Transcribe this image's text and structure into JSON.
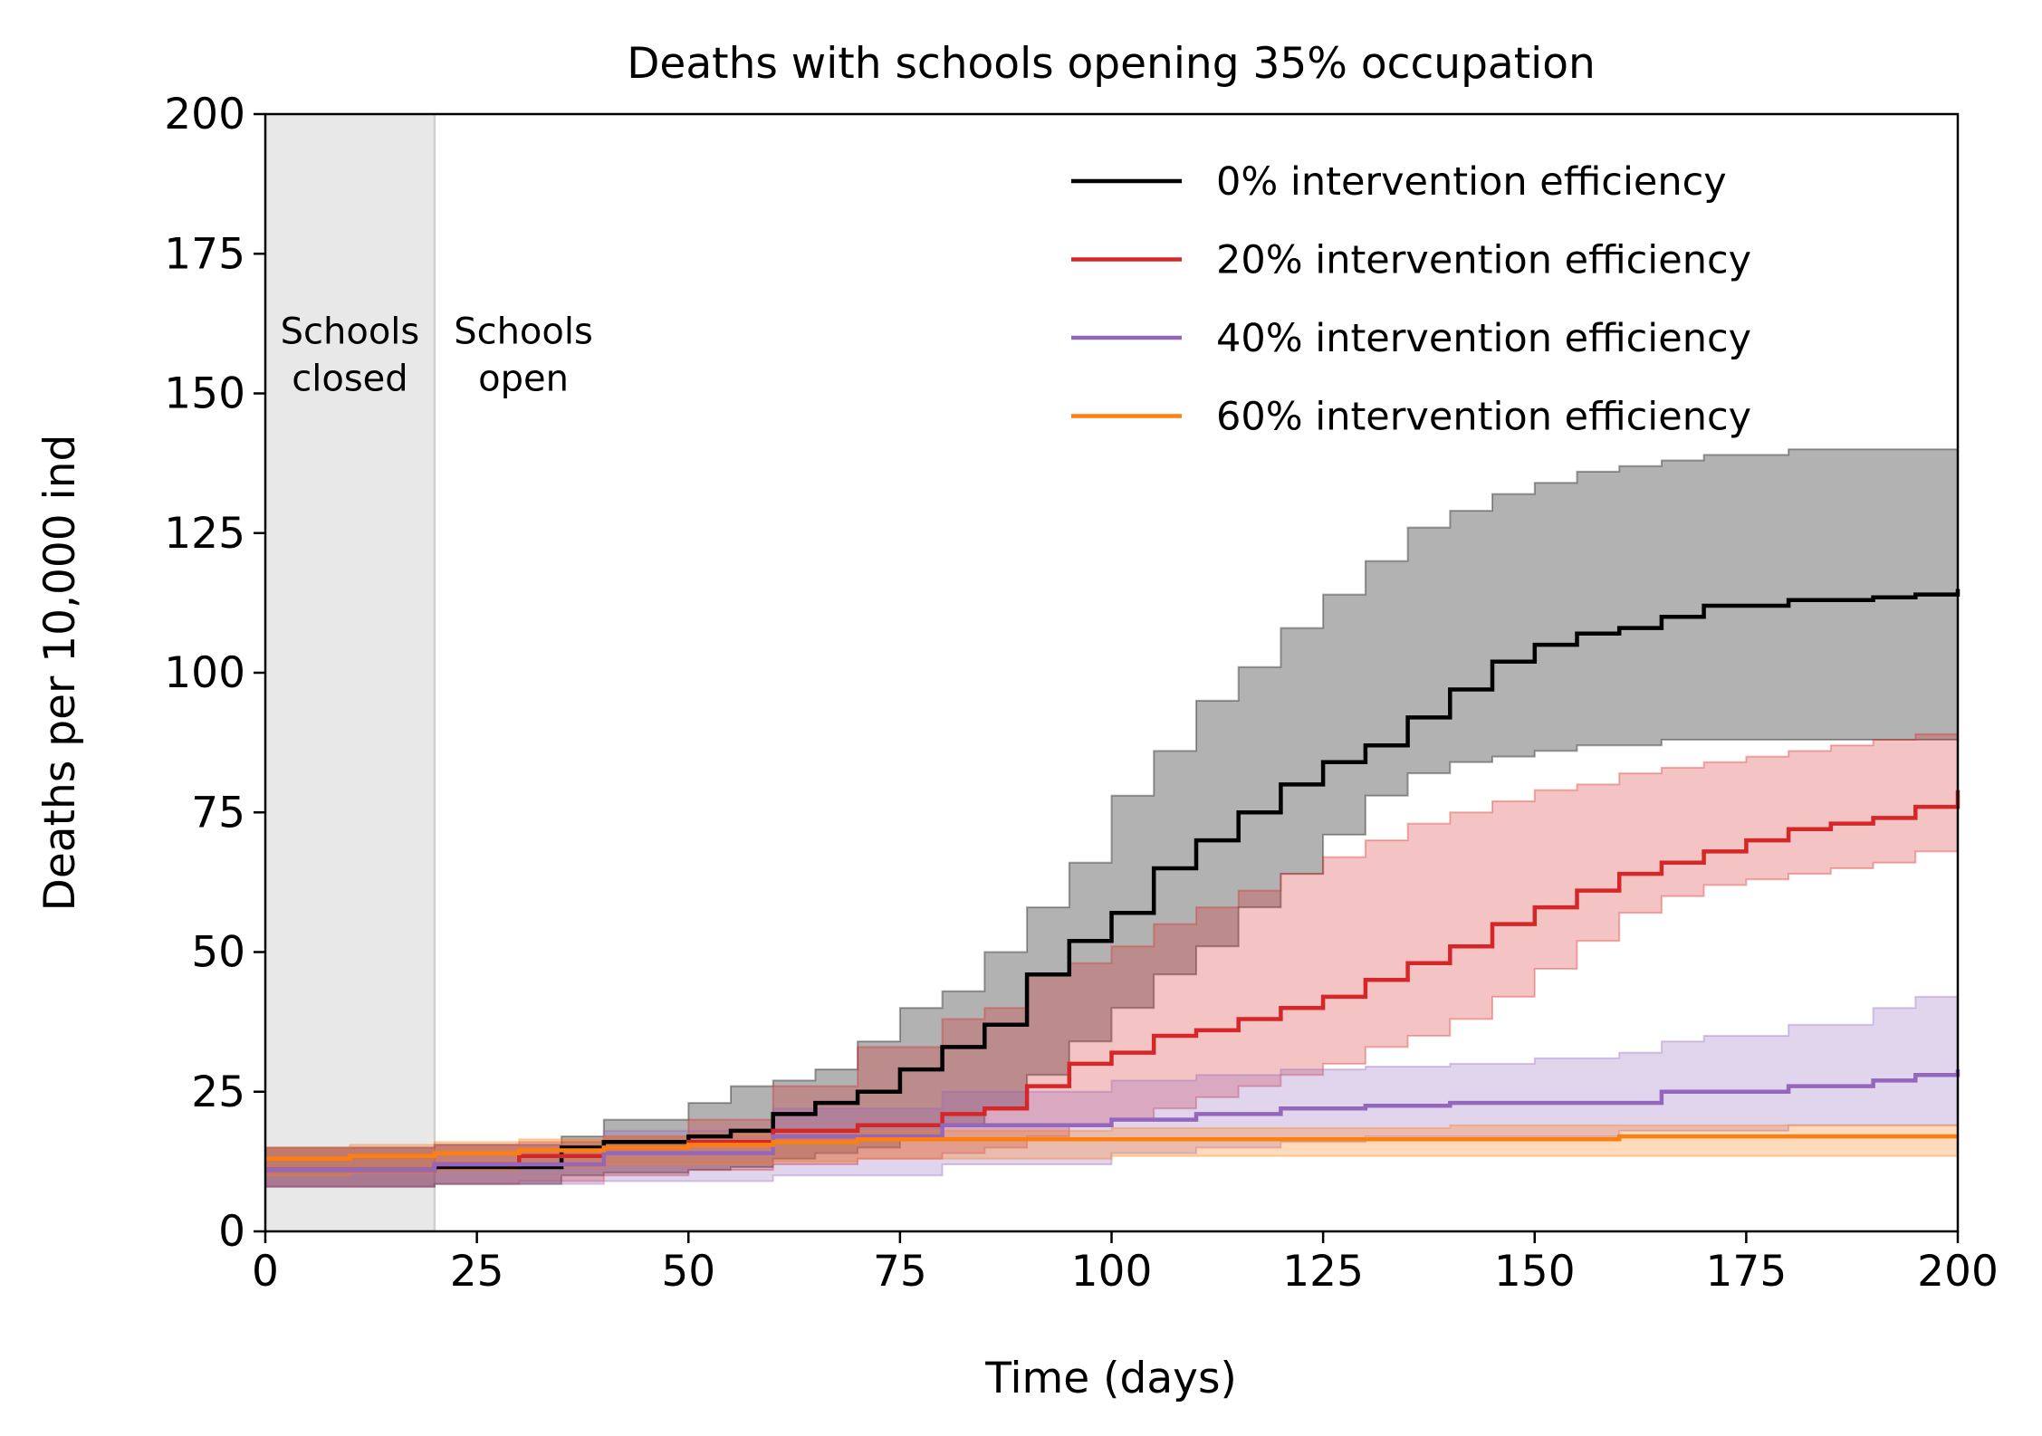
{
  "chart_data": {
    "type": "line",
    "title": "Deaths with schools opening 35% occupation",
    "xlabel": "Time (days)",
    "ylabel": "Deaths per 10,000 ind",
    "xlim": [
      0,
      200
    ],
    "ylim": [
      0,
      200
    ],
    "xticks": [
      0,
      25,
      50,
      75,
      100,
      125,
      150,
      175,
      200
    ],
    "yticks": [
      0,
      25,
      50,
      75,
      100,
      125,
      150,
      175,
      200
    ],
    "grid": false,
    "legend_position": "top-right",
    "shaded_region": {
      "x0": 0,
      "x1": 20,
      "color": "#e8e8e8"
    },
    "annotations": [
      {
        "lines": [
          "Schools",
          "closed"
        ],
        "x": 10,
        "y": 157
      },
      {
        "lines": [
          "Schools",
          "open"
        ],
        "x": 30.5,
        "y": 157
      }
    ],
    "series": [
      {
        "name": "0% intervention efficiency",
        "color": "#000000",
        "x": [
          0,
          20,
          35,
          40,
          50,
          55,
          60,
          65,
          70,
          75,
          80,
          85,
          90,
          95,
          100,
          105,
          110,
          115,
          120,
          125,
          130,
          135,
          140,
          145,
          150,
          155,
          160,
          165,
          170,
          175,
          180,
          185,
          190,
          195,
          200
        ],
        "y": [
          11,
          11.5,
          15,
          16,
          17,
          18,
          21,
          23,
          25,
          29,
          33,
          37,
          46,
          52,
          57,
          65,
          70,
          75,
          80,
          84,
          87,
          92,
          97,
          102,
          105,
          107,
          108,
          110,
          112,
          112,
          113,
          113,
          113.5,
          114,
          115
        ],
        "lower": [
          8,
          8.5,
          10,
          10.5,
          11,
          11.5,
          13,
          14,
          15,
          17,
          19,
          22,
          28,
          34,
          40,
          46,
          51,
          58,
          64,
          71,
          78,
          82,
          84,
          85,
          86,
          87,
          87,
          88,
          88,
          88,
          88,
          88,
          88,
          88,
          88
        ],
        "upper": [
          15,
          15.5,
          17,
          20,
          23,
          26,
          27,
          29,
          34,
          40,
          43,
          50,
          58,
          66,
          78,
          86,
          95,
          101,
          108,
          114,
          120,
          126,
          129,
          132,
          134,
          136,
          137,
          138,
          139,
          139,
          140,
          140,
          140,
          140,
          140
        ]
      },
      {
        "name": "20% intervention efficiency",
        "color": "#d62728",
        "x": [
          0,
          20,
          30,
          40,
          50,
          60,
          70,
          80,
          85,
          90,
          95,
          100,
          105,
          110,
          115,
          120,
          125,
          130,
          135,
          140,
          145,
          150,
          155,
          160,
          165,
          170,
          175,
          180,
          185,
          190,
          195,
          200
        ],
        "y": [
          11,
          12,
          13.5,
          15,
          16,
          18,
          19,
          21,
          22,
          26,
          30,
          32,
          35,
          36,
          38,
          40,
          42,
          45,
          48,
          51,
          55,
          58,
          61,
          64,
          66,
          68,
          70,
          72,
          73,
          74,
          76,
          79
        ],
        "lower": [
          8,
          8.5,
          9,
          10,
          11,
          12,
          13,
          14,
          15,
          17,
          19,
          20,
          22,
          24,
          26,
          28,
          30,
          33,
          35,
          38,
          42,
          47,
          52,
          57,
          60,
          62,
          63,
          64,
          65,
          66,
          68,
          71
        ],
        "upper": [
          15,
          15.5,
          16,
          17,
          20,
          26,
          33,
          38,
          40,
          46,
          48,
          51,
          55,
          58,
          61,
          64,
          67,
          70,
          73,
          75,
          77,
          79,
          80,
          82,
          83,
          84,
          85,
          86,
          87,
          88,
          89,
          91
        ]
      },
      {
        "name": "40% intervention efficiency",
        "color": "#9467bd",
        "x": [
          0,
          20,
          40,
          60,
          80,
          100,
          110,
          120,
          130,
          140,
          150,
          160,
          165,
          170,
          180,
          190,
          195,
          200
        ],
        "y": [
          11,
          12,
          14,
          17,
          19,
          20,
          21,
          22,
          22.5,
          23,
          23,
          23,
          25,
          25,
          26,
          27,
          28,
          29
        ],
        "lower": [
          8,
          8.5,
          9,
          10,
          12,
          14,
          15,
          16,
          17,
          17,
          17,
          18,
          18,
          18,
          19,
          19,
          19,
          19
        ],
        "upper": [
          15,
          15.5,
          18,
          22,
          25,
          27,
          28,
          29,
          29.5,
          30,
          31,
          32,
          34,
          35,
          37,
          40,
          42,
          43
        ]
      },
      {
        "name": "60% intervention efficiency",
        "color": "#ff7f0e",
        "x": [
          0,
          10,
          20,
          30,
          40,
          50,
          60,
          70,
          80,
          90,
          100,
          120,
          140,
          160,
          180,
          200
        ],
        "y": [
          13,
          13.5,
          14,
          14.5,
          15,
          15.5,
          16,
          16.5,
          16.5,
          16.5,
          16.5,
          16.5,
          16.5,
          17,
          17,
          17
        ],
        "lower": [
          10,
          10.5,
          11,
          11.5,
          12,
          12,
          12.5,
          13,
          13,
          13,
          13.5,
          13.5,
          13.5,
          13.5,
          13.5,
          13.5
        ],
        "upper": [
          15,
          15.5,
          16,
          16.5,
          17,
          17.5,
          18,
          18,
          18,
          18,
          18.5,
          18.5,
          19,
          19,
          19,
          19
        ]
      }
    ]
  }
}
